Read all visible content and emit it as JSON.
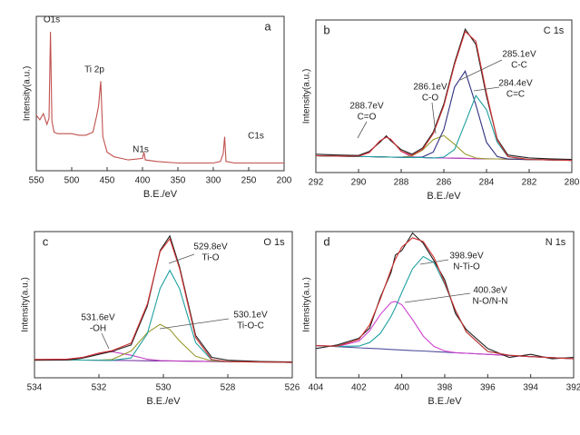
{
  "chart_data": [
    {
      "type": "line",
      "panel_label": "a",
      "xlabel": "B.E./eV",
      "ylabel": "Intensity(a.u.)",
      "xlim": [
        550,
        200
      ],
      "xticks": [
        550,
        500,
        450,
        400,
        350,
        300,
        250,
        200
      ],
      "ylim": [
        0,
        100
      ],
      "x": [
        550,
        545,
        540,
        535,
        532,
        530,
        528,
        525,
        520,
        510,
        500,
        490,
        480,
        470,
        465,
        462,
        459,
        456,
        450,
        440,
        420,
        400,
        398,
        396,
        380,
        350,
        320,
        300,
        290,
        286,
        284,
        282,
        270,
        250,
        220,
        200
      ],
      "series": [
        {
          "color": "#c0504d",
          "values": [
            36,
            33,
            37,
            30,
            34,
            90,
            32,
            25,
            24,
            24,
            24,
            23,
            23,
            25,
            35,
            42,
            58,
            22,
            12,
            9,
            7,
            8,
            12,
            7,
            6,
            5,
            5,
            5,
            6,
            11,
            22,
            6,
            5,
            5,
            5,
            5
          ]
        }
      ],
      "annotations": [
        [
          "O1s"
        ],
        [
          "Ti 2p"
        ],
        [
          "N1s"
        ],
        [
          "C1s"
        ]
      ]
    },
    {
      "type": "line",
      "panel_label": "b",
      "title": "C 1s",
      "xlabel": "B.E./eV",
      "ylabel": "Intensity(a.u.)",
      "xlim": [
        292,
        280
      ],
      "xticks": [
        292,
        290,
        288,
        286,
        284,
        282,
        280
      ],
      "ylim": [
        0,
        100
      ],
      "x": [
        292,
        291,
        290,
        289.5,
        289,
        288.7,
        288.5,
        288,
        287.5,
        287,
        286.5,
        286,
        285.5,
        285,
        284.5,
        284,
        283.5,
        283,
        282,
        281,
        280
      ],
      "series": [
        {
          "color": "#7030a0",
          "values": [
            11,
            10.8,
            10.5,
            10.4,
            10.3,
            10.2,
            10.1,
            10,
            9.9,
            9.8,
            9.6,
            9.5,
            9.4,
            9.3,
            9.1,
            9,
            8.9,
            8.8,
            8.5,
            8.3,
            8
          ]
        },
        {
          "color": "#c040c0",
          "values": [
            11,
            10.8,
            10.7,
            13.1,
            20.6,
            23.2,
            21.9,
            13.9,
            10.3,
            9.8,
            9.6,
            9.5,
            9.4,
            9.3,
            9.1,
            9,
            8.9,
            8.8,
            8.5,
            8.3,
            8
          ]
        },
        {
          "color": "#9a9a30",
          "values": [
            11,
            10.8,
            10.5,
            10.4,
            10.3,
            10.2,
            10.1,
            10.1,
            10.9,
            14.7,
            21.6,
            24.3,
            18.5,
            12.1,
            9.5,
            9,
            8.9,
            8.8,
            8.5,
            8.3,
            8
          ]
        },
        {
          "color": "#303080",
          "values": [
            11,
            10.8,
            10.5,
            10.4,
            10.3,
            10.2,
            10.1,
            10,
            9.9,
            10.2,
            13.4,
            28.3,
            56,
            66.5,
            44.3,
            19.8,
            10.5,
            8.9,
            8.5,
            8.3,
            8
          ]
        },
        {
          "color": "#20a0a0",
          "values": [
            11,
            10.8,
            10.5,
            10.4,
            10.3,
            10.2,
            10.1,
            10,
            9.9,
            9.8,
            9.6,
            10.1,
            15.1,
            32.5,
            50.4,
            41.2,
            19.9,
            10.4,
            8.5,
            8.3,
            8
          ]
        },
        {
          "color": "#222222",
          "values": [
            12,
            11.5,
            11.2,
            13.8,
            19.8,
            24.1,
            21,
            15,
            12,
            16,
            26.5,
            45,
            72,
            94,
            84,
            50,
            22,
            11.5,
            9.6,
            9,
            8.6
          ]
        },
        {
          "color": "#d03030",
          "values": [
            11,
            10.8,
            10.7,
            13.1,
            20.7,
            23.2,
            21.9,
            14,
            11.3,
            15.1,
            25.4,
            43.7,
            70.8,
            92.5,
            86,
            52,
            21.5,
            10.5,
            8.5,
            8.3,
            8
          ]
        }
      ],
      "annotations": [
        [
          "288.7eV",
          "C=O"
        ],
        [
          "286.1eV",
          "C-O"
        ],
        [
          "285.1eV",
          "C-C"
        ],
        [
          "284.4eV",
          "C=C"
        ]
      ]
    },
    {
      "type": "line",
      "panel_label": "c",
      "title": "O 1s",
      "xlabel": "B.E./eV",
      "ylabel": "Intensity(a.u.)",
      "xlim": [
        534,
        526
      ],
      "xticks": [
        534,
        532,
        530,
        528,
        526
      ],
      "ylim": [
        0,
        100
      ],
      "x": [
        534,
        533,
        532.5,
        532,
        531.6,
        531,
        530.5,
        530.1,
        529.8,
        529.5,
        529,
        528.5,
        528,
        527,
        526
      ],
      "series": [
        {
          "color": "#7030a0",
          "values": [
            12.5,
            12.3,
            12.1,
            12,
            11.9,
            11.8,
            11.6,
            11.5,
            11.5,
            11.4,
            11.3,
            11.1,
            11,
            10.8,
            10.5
          ]
        },
        {
          "color": "#c040c0",
          "values": [
            12.5,
            12.7,
            14,
            16.8,
            17.9,
            15.4,
            12.7,
            11.8,
            11.6,
            11.4,
            11.3,
            11.1,
            11,
            10.8,
            10.5
          ]
        },
        {
          "color": "#9a9a30",
          "values": [
            12.5,
            12.3,
            12.1,
            12.1,
            12.5,
            18.3,
            30.8,
            36.5,
            33,
            25.2,
            14.7,
            11.5,
            11,
            10.8,
            10.5
          ]
        },
        {
          "color": "#20a0a0",
          "values": [
            12.5,
            12.3,
            12.1,
            12,
            11.9,
            13.6,
            30.1,
            61.1,
            73.5,
            61,
            24.1,
            12.1,
            11,
            10.8,
            10.5
          ]
        },
        {
          "color": "#222222",
          "values": [
            12,
            12.2,
            13.5,
            16,
            18,
            22.5,
            49,
            87,
            97,
            76,
            29,
            14,
            12,
            11.2,
            10.8
          ]
        },
        {
          "color": "#d03030",
          "values": [
            12.5,
            12.7,
            14,
            16.9,
            18.5,
            23.7,
            50.4,
            86.4,
            95.1,
            74.8,
            27.5,
            12.5,
            11,
            10.8,
            10.5
          ]
        }
      ],
      "annotations": [
        [
          "529.8eV",
          "Ti-O"
        ],
        [
          "530.1eV",
          "Ti-O-C"
        ],
        [
          "531.6eV",
          "-OH"
        ]
      ]
    },
    {
      "type": "line",
      "panel_label": "d",
      "title": "N 1s",
      "xlabel": "B.E./eV",
      "ylabel": "Intensity(a.u.)",
      "xlim": [
        404,
        392
      ],
      "xticks": [
        404,
        402,
        400,
        398,
        396,
        394,
        392
      ],
      "ylim": [
        0,
        100
      ],
      "x": [
        404,
        403,
        402,
        401.5,
        401,
        400.5,
        400.3,
        400,
        399.5,
        399,
        398.5,
        398,
        397.5,
        397,
        396,
        395,
        394,
        393,
        392
      ],
      "series": [
        {
          "color": "#5050a0",
          "values": [
            22,
            21.3,
            20.5,
            20.1,
            19.8,
            19.4,
            19.2,
            19,
            18.6,
            18.3,
            17.9,
            17.5,
            17.1,
            16.8,
            16,
            15.3,
            14.5,
            13.8,
            13
          ]
        },
        {
          "color": "#d040d0",
          "values": [
            22,
            21.5,
            25,
            32.2,
            43.3,
            51.5,
            52.2,
            50,
            39.8,
            28.5,
            21.4,
            18.3,
            17.2,
            16.8,
            16,
            15.3,
            14.5,
            13.8,
            13
          ]
        },
        {
          "color": "#20a0a0",
          "values": [
            22,
            21.4,
            21.7,
            24.1,
            30.3,
            41.9,
            48.1,
            58.4,
            74.6,
            83,
            78.7,
            64,
            46,
            31.4,
            18,
            15.4,
            14.5,
            13.8,
            13
          ]
        },
        {
          "color": "#222222",
          "values": [
            20,
            22.5,
            27,
            34,
            55,
            72,
            84,
            87,
            99,
            92,
            80,
            67,
            44,
            33,
            20,
            14,
            16,
            13,
            14
          ]
        },
        {
          "color": "#d03030",
          "values": [
            22,
            21.6,
            26.2,
            36.2,
            53.8,
            74,
            81.1,
            89.4,
            95.8,
            93.2,
            82.2,
            64.8,
            46.1,
            31.4,
            18,
            15.4,
            14.5,
            13.8,
            13
          ]
        }
      ],
      "annotations": [
        [
          "398.9eV",
          "N-Ti-O"
        ],
        [
          "400.3eV",
          "N-O/N-N"
        ]
      ]
    }
  ]
}
